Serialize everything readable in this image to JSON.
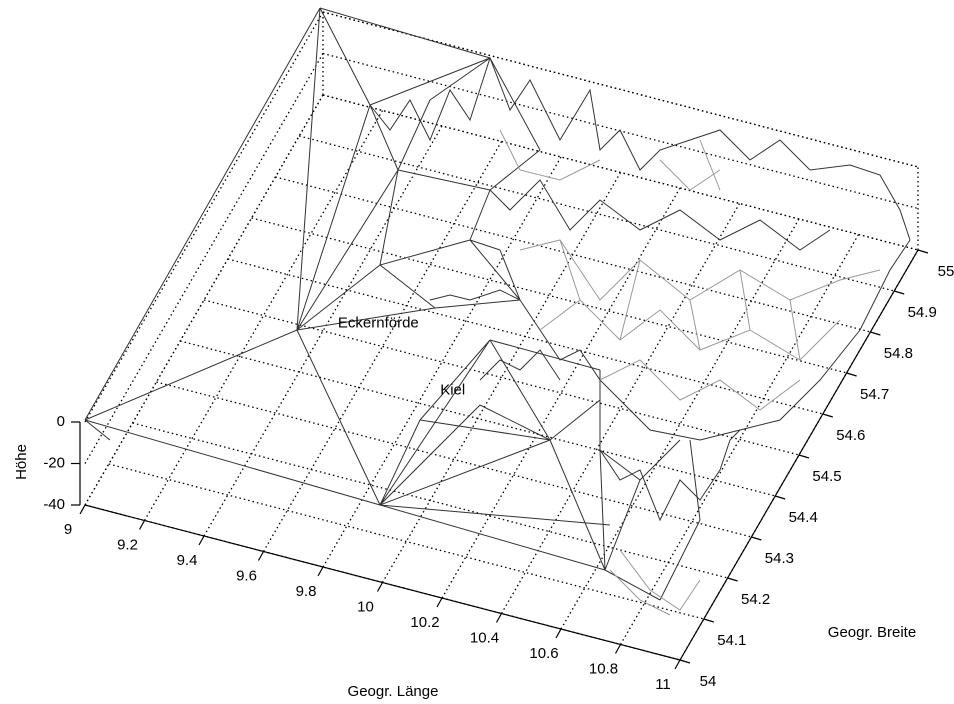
{
  "chart_data": {
    "type": "mesh3d",
    "xlabel": "Geogr. Länge",
    "ylabel": "Geogr. Breite",
    "zlabel": "Höhe",
    "xlim": [
      9,
      11
    ],
    "xticks": [
      9,
      9.2,
      9.4,
      9.6,
      9.8,
      10,
      10.2,
      10.4,
      10.6,
      10.8,
      11
    ],
    "ylim": [
      54,
      55
    ],
    "yticks": [
      54,
      54.1,
      54.2,
      54.3,
      54.4,
      54.5,
      54.6,
      54.7,
      54.8,
      54.9,
      55
    ],
    "zlim": [
      -40,
      0
    ],
    "zticks": [
      -40,
      -20,
      0
    ],
    "grid": true,
    "annotations": [
      {
        "text": "Eckernförde",
        "x": 9.69,
        "y": 54.37,
        "z": 0
      },
      {
        "text": "Kiel",
        "x": 10.02,
        "y": 54.27,
        "z": 0
      }
    ]
  }
}
